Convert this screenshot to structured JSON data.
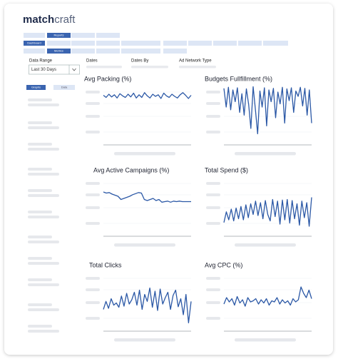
{
  "header": {
    "logo_bold": "match",
    "logo_light": "craft"
  },
  "nav": {
    "reports": "Reports",
    "dashboard": "Dashboard",
    "metrics": "Metrics"
  },
  "filters": {
    "data_range_label": "Data Range",
    "data_range_value": "Last 30 Days",
    "dates": "Dates",
    "dates_by": "Dates By",
    "ad_network_type": "Ad Network Type"
  },
  "sidebar": {
    "graphs": "Graphs",
    "data": "Data"
  },
  "charts": [
    {
      "type": "line",
      "title": "Avg Packing (%)",
      "color": "#2b58a6",
      "ylim": [
        0,
        100
      ],
      "values": [
        82,
        78,
        84,
        79,
        83,
        77,
        85,
        81,
        78,
        84,
        79,
        86,
        77,
        83,
        78,
        87,
        81,
        77,
        84,
        80,
        83,
        76,
        86,
        81,
        78,
        84,
        80,
        77,
        83,
        87,
        82,
        76,
        82
      ]
    },
    {
      "type": "line",
      "title": "Budgets Fullfillment (%)",
      "color": "#2b58a6",
      "ylim": [
        0,
        100
      ],
      "values": [
        95,
        60,
        97,
        55,
        92,
        70,
        96,
        50,
        85,
        45,
        94,
        65,
        20,
        98,
        55,
        10,
        90,
        60,
        96,
        25,
        92,
        70,
        95,
        40,
        88,
        66,
        97,
        30,
        94,
        72,
        96,
        50,
        90,
        80,
        97,
        62,
        95,
        45,
        92,
        30
      ]
    },
    {
      "type": "line",
      "title": "Avg Active Campaigns (%)",
      "color": "#2b58a6",
      "ylim": [
        0,
        100
      ],
      "values": [
        72,
        70,
        71,
        68,
        66,
        64,
        58,
        60,
        62,
        64,
        67,
        69,
        71,
        70,
        58,
        56,
        58,
        60,
        56,
        58,
        53,
        54,
        55,
        53,
        55,
        54,
        55,
        54,
        54,
        54,
        54
      ]
    },
    {
      "type": "line",
      "title": "Total Spend ($)",
      "color": "#2b58a6",
      "ylim": [
        0,
        100
      ],
      "values": [
        15,
        35,
        20,
        40,
        18,
        42,
        22,
        45,
        20,
        48,
        24,
        50,
        30,
        55,
        28,
        52,
        22,
        56,
        30,
        18,
        58,
        26,
        55,
        12,
        57,
        20,
        58,
        14,
        56,
        22,
        50,
        10,
        55,
        24,
        52,
        8,
        62
      ]
    },
    {
      "type": "line",
      "title": "Total Clicks",
      "color": "#2b58a6",
      "ylim": [
        0,
        100
      ],
      "values": [
        30,
        45,
        32,
        50,
        38,
        42,
        34,
        55,
        36,
        60,
        40,
        48,
        62,
        38,
        66,
        30,
        58,
        45,
        70,
        34,
        64,
        28,
        68,
        40,
        52,
        62,
        30,
        56,
        66,
        35,
        50,
        20,
        58,
        5,
        45
      ]
    },
    {
      "type": "line",
      "title": "Avg CPC (%)",
      "color": "#2b58a6",
      "ylim": [
        0,
        100
      ],
      "values": [
        40,
        52,
        44,
        50,
        38,
        54,
        42,
        48,
        36,
        52,
        44,
        46,
        50,
        40,
        48,
        42,
        50,
        38,
        46,
        44,
        52,
        40,
        48,
        42,
        46,
        38,
        50,
        44,
        48,
        72,
        60,
        52,
        66,
        50
      ]
    }
  ]
}
